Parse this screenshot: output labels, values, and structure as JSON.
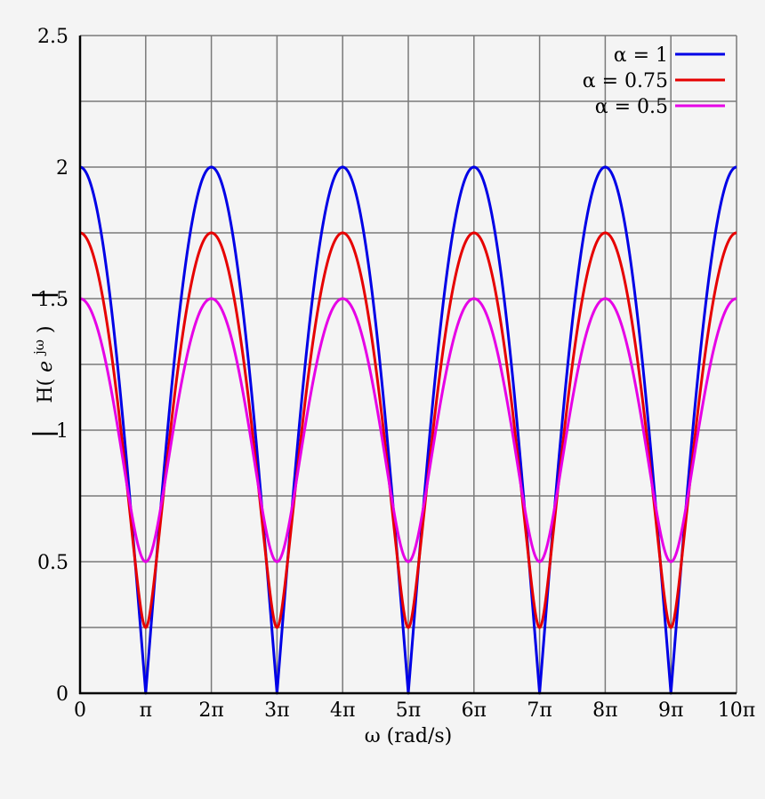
{
  "chart_data": {
    "type": "line",
    "title": "",
    "xlabel": "ω (rad/s)",
    "ylabel_prefix": "H(",
    "ylabel_base": "e",
    "ylabel_sup": "jω",
    "ylabel_suffix": ")",
    "xlim": [
      0,
      10
    ],
    "x_unit": "π rad/s",
    "ylim": [
      0,
      2.5
    ],
    "x_ticks": [
      {
        "value": 0,
        "label": "0"
      },
      {
        "value": 1,
        "label": "π"
      },
      {
        "value": 2,
        "label": "2π"
      },
      {
        "value": 3,
        "label": "3π"
      },
      {
        "value": 4,
        "label": "4π"
      },
      {
        "value": 5,
        "label": "5π"
      },
      {
        "value": 6,
        "label": "6π"
      },
      {
        "value": 7,
        "label": "7π"
      },
      {
        "value": 8,
        "label": "8π"
      },
      {
        "value": 9,
        "label": "9π"
      },
      {
        "value": 10,
        "label": "10π"
      }
    ],
    "y_ticks": [
      {
        "value": 0,
        "label": "0"
      },
      {
        "value": 0.5,
        "label": "0.5"
      },
      {
        "value": 1,
        "label": "1"
      },
      {
        "value": 1.5,
        "label": "1.5"
      },
      {
        "value": 2,
        "label": "2"
      },
      {
        "value": 2.5,
        "label": "2.5"
      }
    ],
    "y_minor_grid": [
      0.25,
      0.75,
      1.25,
      1.75,
      2.25
    ],
    "grid": true,
    "legend_position": "top-right",
    "series": [
      {
        "name": "α = 1",
        "alpha": 1,
        "color": "#0000e6",
        "max": 2,
        "min": 0
      },
      {
        "name": "α = 0.75",
        "alpha": 0.75,
        "color": "#e60000",
        "max": 1.75,
        "min": 0.25
      },
      {
        "name": "α = 0.5",
        "alpha": 0.5,
        "color": "#e600e6",
        "max": 1.5,
        "min": 0.5
      }
    ]
  }
}
